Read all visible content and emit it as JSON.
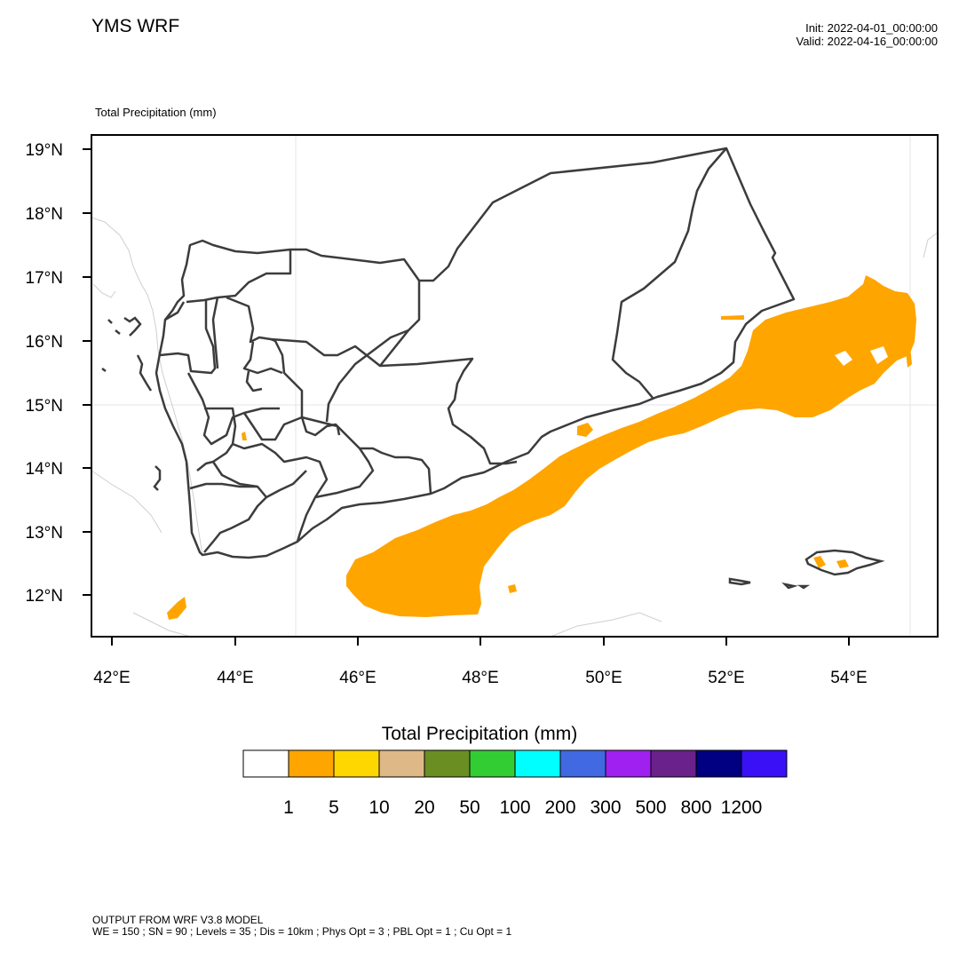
{
  "header": {
    "title": "YMS WRF",
    "init": "Init: 2022-04-01_00:00:00",
    "valid": "Valid: 2022-04-16_00:00:00",
    "subtitle": "Total Precipitation   (mm)"
  },
  "map": {
    "lat_labels": [
      "19°N",
      "18°N",
      "17°N",
      "16°N",
      "15°N",
      "14°N",
      "13°N",
      "12°N"
    ],
    "lon_labels": [
      "42°E",
      "44°E",
      "46°E",
      "48°E",
      "50°E",
      "52°E",
      "54°E"
    ],
    "precip_color": "#ffa500",
    "border_color": "#3c3c3c",
    "coast_color": "#cccccc"
  },
  "labelbar": {
    "title": "Total Precipitation  (mm)",
    "colors": [
      "#ffffff",
      "#ffa500",
      "#ffd700",
      "#deb887",
      "#6b8e23",
      "#32cd32",
      "#00ffff",
      "#4169e1",
      "#a020f0",
      "#6a228a",
      "#000080",
      "#3a10f7"
    ],
    "labels": [
      "1",
      "5",
      "10",
      "20",
      "50",
      "100",
      "200",
      "300",
      "500",
      "800",
      "1200"
    ]
  },
  "footer": {
    "line1": "OUTPUT FROM WRF V3.8 MODEL",
    "line2": "WE = 150 ; SN = 90 ; Levels = 35 ; Dis = 10km ; Phys Opt = 3 ; PBL Opt = 1 ; Cu Opt = 1"
  }
}
